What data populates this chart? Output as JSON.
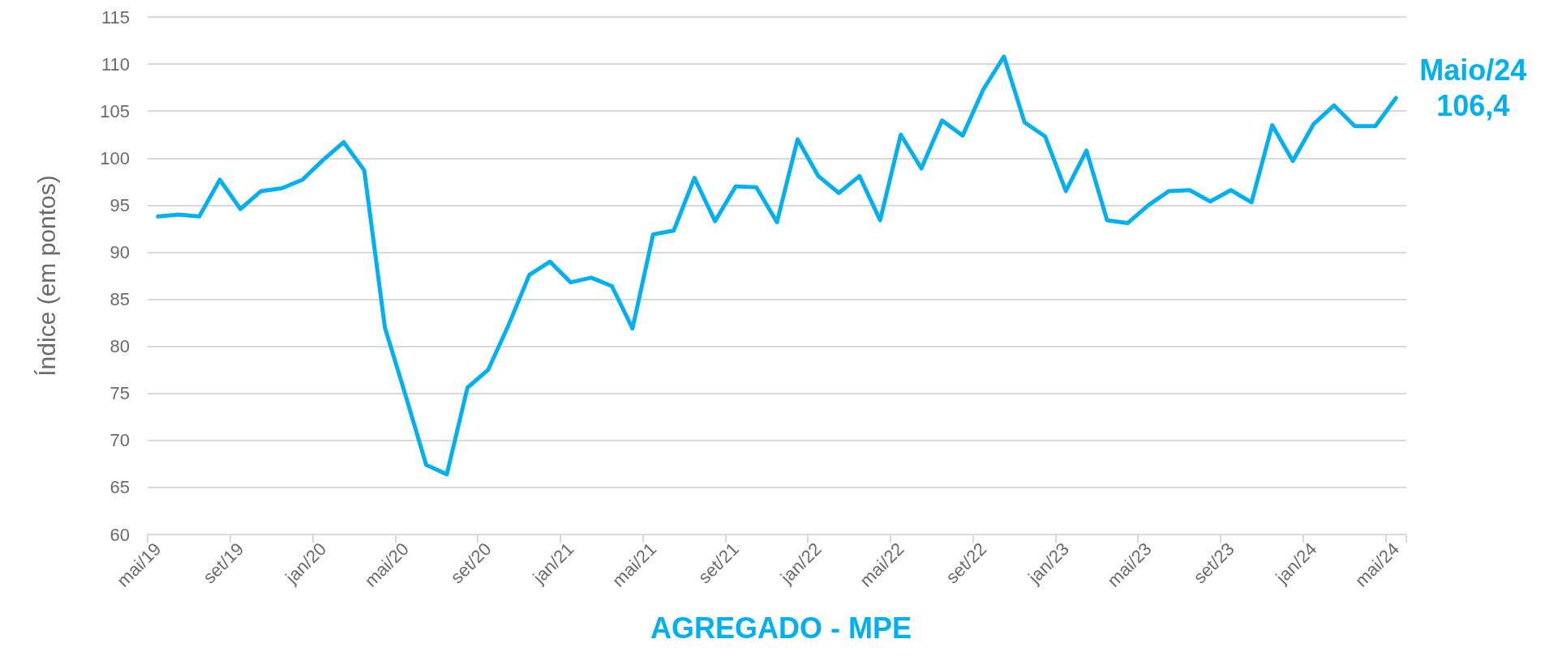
{
  "chart_data": {
    "type": "line",
    "title": "AGREGADO - MPE",
    "ylabel": "Índice (em pontos)",
    "categories": [
      "mai/19",
      null,
      null,
      null,
      "set/19",
      null,
      null,
      null,
      "jan/20",
      null,
      null,
      null,
      "mai/20",
      null,
      null,
      null,
      "set/20",
      null,
      null,
      null,
      "jan/21",
      null,
      null,
      null,
      "mai/21",
      null,
      null,
      null,
      "set/21",
      null,
      null,
      null,
      "jan/22",
      null,
      null,
      null,
      "mai/22",
      null,
      null,
      null,
      "set/22",
      null,
      null,
      null,
      "jan/23",
      null,
      null,
      null,
      "mai/23",
      null,
      null,
      null,
      "set/23",
      null,
      null,
      null,
      "jan/24",
      null,
      null,
      null,
      "mai/24"
    ],
    "series": [
      {
        "color": "#00b0f0",
        "values": [
          93.8,
          94.0,
          93.8,
          97.7,
          94.6,
          96.5,
          96.8,
          97.7,
          99.8,
          101.7,
          98.7,
          82.0,
          74.8,
          67.4,
          66.4,
          75.6,
          77.5,
          82.3,
          87.6,
          89.0,
          86.8,
          87.3,
          86.4,
          81.9,
          91.9,
          92.3,
          97.9,
          93.3,
          97.0,
          96.9,
          93.2,
          102.0,
          98.1,
          96.3,
          98.1,
          93.4,
          102.5,
          98.9,
          104.0,
          102.4,
          107.3,
          110.8,
          103.8,
          102.3,
          96.5,
          100.8,
          93.4,
          93.1,
          95.0,
          96.5,
          96.6,
          95.4,
          96.6,
          95.3,
          103.5,
          99.7,
          103.6,
          105.6,
          103.4,
          103.4,
          106.4
        ]
      }
    ],
    "ylim": [
      60,
      115
    ],
    "yticks": [
      60,
      65,
      70,
      75,
      80,
      85,
      90,
      95,
      100,
      105,
      110,
      115
    ],
    "grid": "y",
    "marker": "none",
    "line_style": "solid",
    "annotations": [
      {
        "text": "Maio/24\n106,4",
        "x": "mai/24",
        "y": 106.4
      }
    ]
  }
}
